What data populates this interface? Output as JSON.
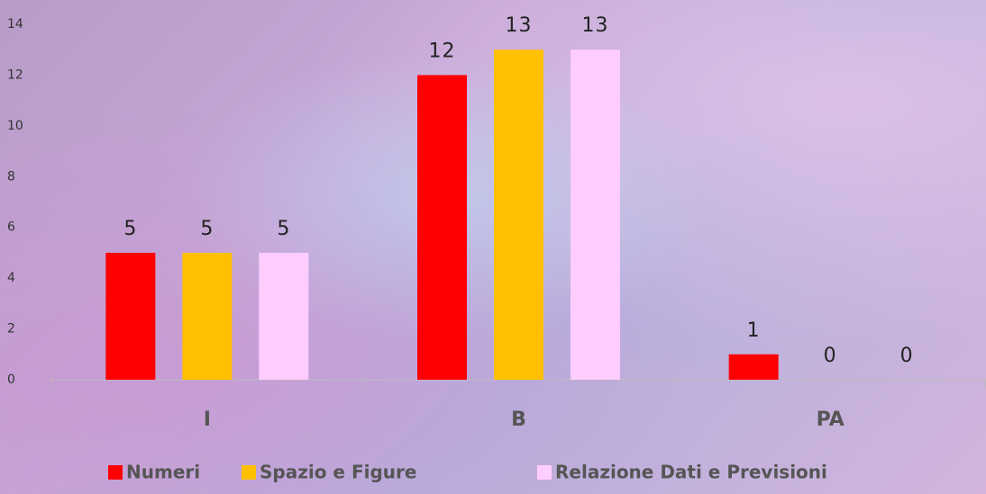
{
  "chart_data": {
    "type": "bar",
    "categories": [
      "I",
      "B",
      "PA"
    ],
    "series": [
      {
        "name": "Numeri",
        "color": "#ff0000",
        "values": [
          5,
          12,
          1
        ]
      },
      {
        "name": "Spazio e Figure",
        "color": "#ffc000",
        "values": [
          5,
          13,
          0
        ]
      },
      {
        "name": "Relazione Dati e Previsioni",
        "color": "#ffccff",
        "values": [
          5,
          13,
          0
        ]
      }
    ],
    "ylim": [
      0,
      14
    ],
    "yticks": [
      0,
      2,
      4,
      6,
      8,
      10,
      12,
      14
    ],
    "grid": false,
    "legend": "bottom"
  }
}
